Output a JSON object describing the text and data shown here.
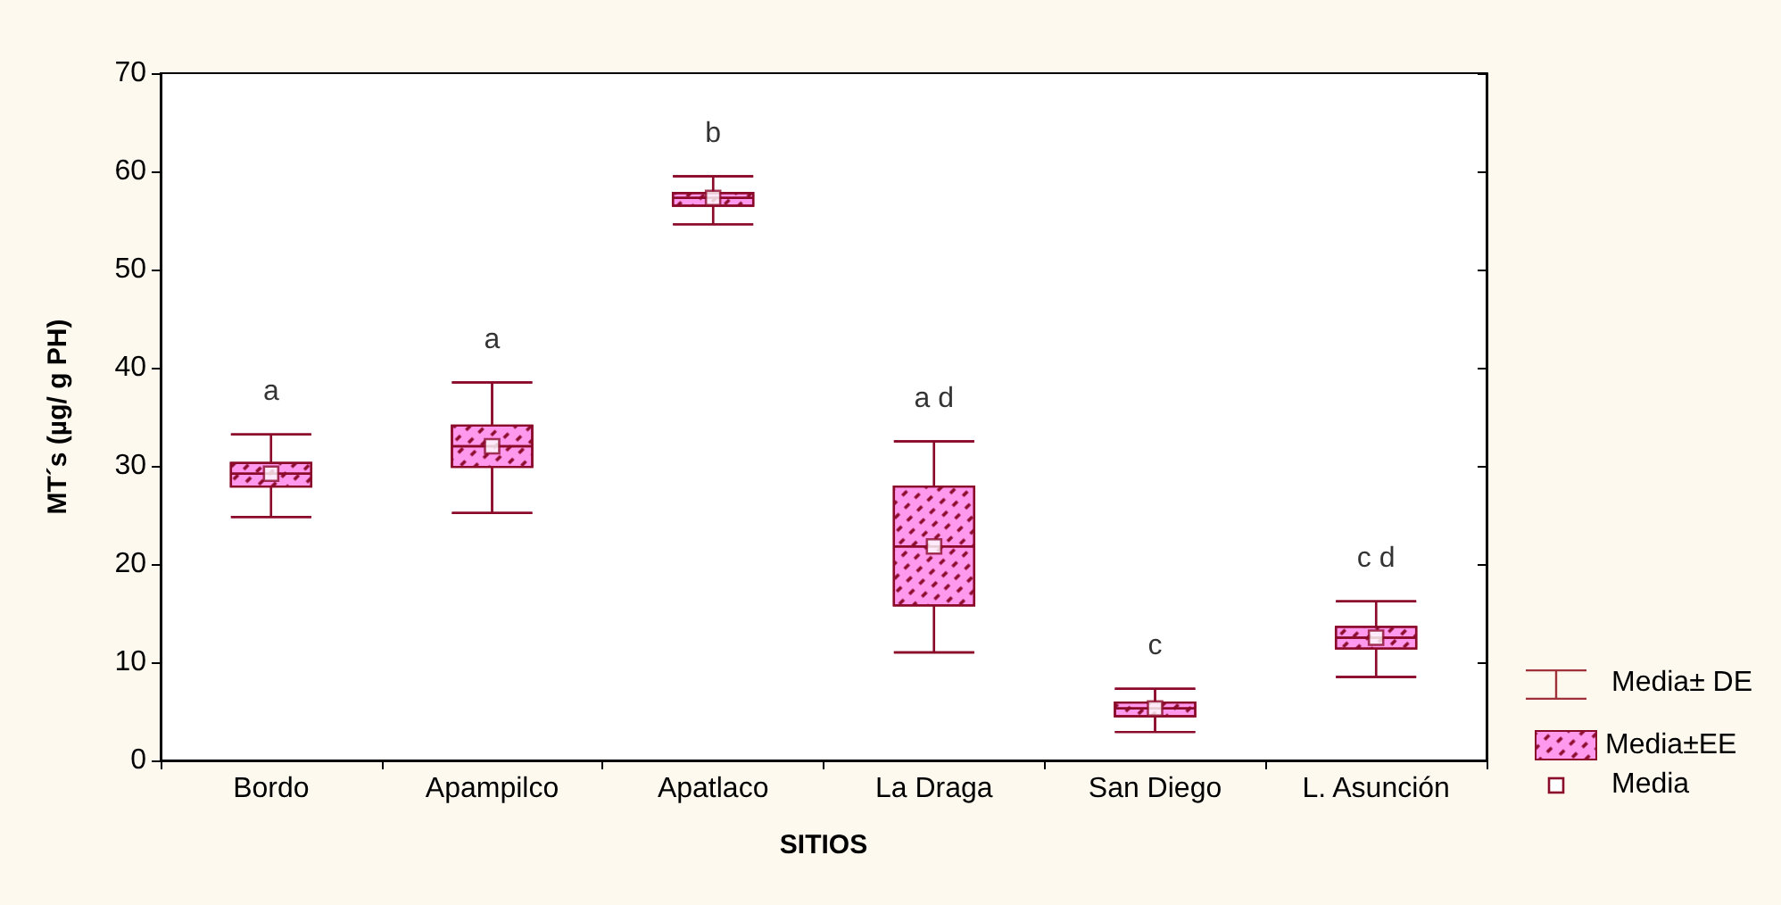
{
  "chart_data": {
    "type": "box",
    "xlabel": "SITIOS",
    "ylabel": "MT´s (µg/ g PH)",
    "categories": [
      "Bordo",
      "Apampilco",
      "Apatlaco",
      "La Draga",
      "San Diego",
      "L. Asunción"
    ],
    "series": [
      {
        "name": "Media±EE",
        "color": "#ff99ee",
        "boxes": [
          {
            "low": 24.8,
            "q1": 27.9,
            "median": 29.2,
            "q3": 30.3,
            "high": 33.2,
            "mean": 29.2
          },
          {
            "low": 25.2,
            "q1": 29.9,
            "median": 32.0,
            "q3": 34.1,
            "high": 38.5,
            "mean": 32.0
          },
          {
            "low": 54.6,
            "q1": 56.5,
            "median": 57.3,
            "q3": 57.8,
            "high": 59.5,
            "mean": 57.3
          },
          {
            "low": 11.0,
            "q1": 15.8,
            "median": 21.8,
            "q3": 27.9,
            "high": 32.5,
            "mean": 21.8
          },
          {
            "low": 2.9,
            "q1": 4.5,
            "median": 5.3,
            "q3": 5.9,
            "high": 7.3,
            "mean": 5.3
          },
          {
            "low": 8.5,
            "q1": 11.4,
            "median": 12.5,
            "q3": 13.6,
            "high": 16.2,
            "mean": 12.5
          }
        ]
      }
    ],
    "ylim": [
      0,
      70
    ],
    "yticks": [
      0,
      10,
      20,
      30,
      40,
      50,
      60,
      70
    ],
    "grid": false,
    "legend": "bottom right",
    "annotations": [
      "a",
      "a",
      "b",
      "a d",
      "c",
      "c d",
      "Media± DE",
      "Media"
    ]
  }
}
